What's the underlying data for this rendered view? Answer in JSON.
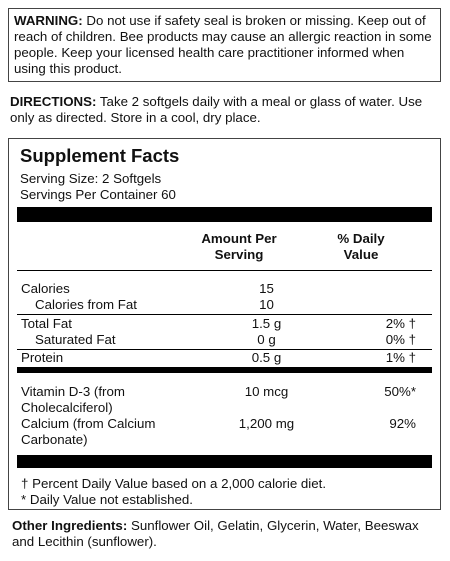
{
  "warning": {
    "label": "WARNING:",
    "text": "Do not use if safety seal is broken or missing. Keep out of reach of children. Bee products may cause an allergic reaction in some people. Keep your licensed health care practitioner informed when using this product."
  },
  "directions": {
    "label": "DIRECTIONS:",
    "text": "Take 2 softgels daily with a meal or glass of water. Use only as directed.  Store in a cool, dry place."
  },
  "supplement_facts": {
    "title": "Supplement Facts",
    "serving_size": "Serving Size: 2 Softgels",
    "servings_per_container": "Servings Per Container 60",
    "columns": [
      "Amount Per Serving",
      "% Daily Value"
    ],
    "rows": [
      {
        "name": "Calories",
        "amount": "15"
      },
      {
        "name": "Calories from Fat",
        "amount": "10"
      },
      {
        "name": "Total Fat",
        "amount": "1.5 g",
        "dv": "2% †"
      },
      {
        "name": "Saturated Fat",
        "amount": "0 g",
        "dv": "0% †"
      },
      {
        "name": "Protein",
        "amount": "0.5 g",
        "dv": "1% †"
      },
      {
        "name": "Vitamin D-3 (from Cholecalciferol)",
        "amount": "10 mcg",
        "dv": "50%*"
      },
      {
        "name": "Calcium (from Calcium Carbonate)",
        "amount": "1,200 mg",
        "dv": "92%"
      }
    ],
    "footnotes": [
      "† Percent Daily Value based on a 2,000 calorie diet.",
      "* Daily Value not established."
    ]
  },
  "other_ingredients": {
    "label": "Other Ingredients:",
    "text": "Sunflower Oil, Gelatin, Glycerin, Water, Beeswax and Lecithin (sunflower)."
  }
}
